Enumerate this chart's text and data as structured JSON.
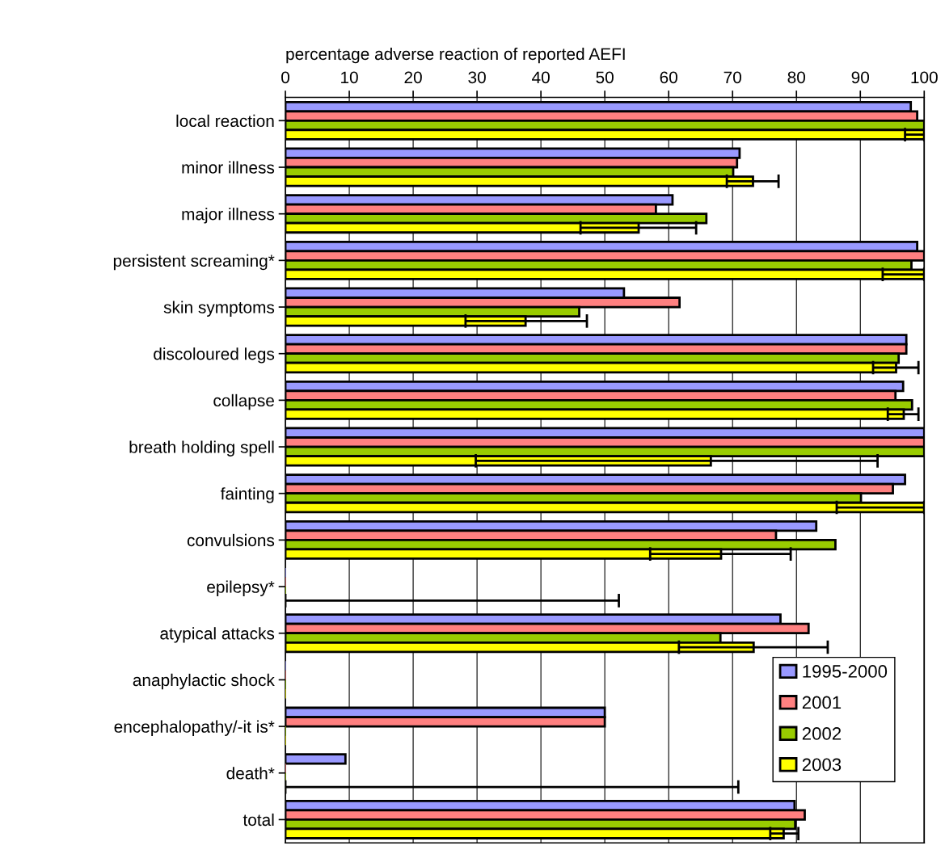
{
  "chart_data": {
    "type": "bar",
    "orientation": "horizontal",
    "xlabel": "percentage adverse reaction of reported AEFI",
    "categories": [
      "local reaction",
      "minor illness",
      "major illness",
      "persistent screaming*",
      "skin symptoms",
      "discoloured legs",
      "collapse",
      "breath holding spell",
      "fainting",
      "convulsions",
      "epilepsy*",
      "atypical attacks",
      "anaphylactic shock",
      "encephalopathy/-it is*",
      "death*",
      "total"
    ],
    "series": [
      {
        "name": "1995-2000",
        "color": "#9999ff",
        "values": [
          97.9,
          71.1,
          60.6,
          98.9,
          53.0,
          97.2,
          96.7,
          100,
          97.0,
          83.1,
          0,
          77.5,
          0,
          50,
          9.4,
          79.7
        ]
      },
      {
        "name": "2001",
        "color": "#ff8080",
        "values": [
          98.9,
          70.7,
          58.0,
          100,
          61.7,
          97.2,
          95.5,
          100,
          95.1,
          76.8,
          0,
          81.9,
          0,
          50,
          0,
          81.3
        ]
      },
      {
        "name": "2002",
        "color": "#99cc00",
        "values": [
          100,
          70.1,
          65.9,
          98.0,
          46.0,
          96.0,
          98.1,
          100,
          90.1,
          86.1,
          0,
          68.1,
          0,
          0,
          0,
          79.8
        ]
      },
      {
        "name": "2003",
        "color": "#ffff00",
        "values": [
          100,
          73.2,
          55.3,
          100,
          37.6,
          95.6,
          96.8,
          66.6,
          100,
          68.2,
          0,
          73.3,
          0,
          0,
          0,
          78.0
        ],
        "errors": [
          [
            97,
            100
          ],
          [
            69.1,
            77.2
          ],
          [
            46.2,
            64.3
          ],
          [
            93.5,
            100
          ],
          [
            28.2,
            47.2
          ],
          [
            92.0,
            99.1
          ],
          [
            94.3,
            99.1
          ],
          [
            29.8,
            92.7
          ],
          [
            86.3,
            100
          ],
          [
            57.1,
            79.1
          ],
          [
            0,
            52.2
          ],
          [
            61.6,
            84.9
          ],
          null,
          null,
          [
            0,
            70.9
          ],
          [
            75.9,
            80.3
          ]
        ]
      }
    ],
    "xlim": [
      0,
      100
    ],
    "xticks": [
      0,
      10,
      20,
      30,
      40,
      50,
      60,
      70,
      80,
      90,
      100
    ],
    "grid": "x",
    "legend": "right"
  }
}
